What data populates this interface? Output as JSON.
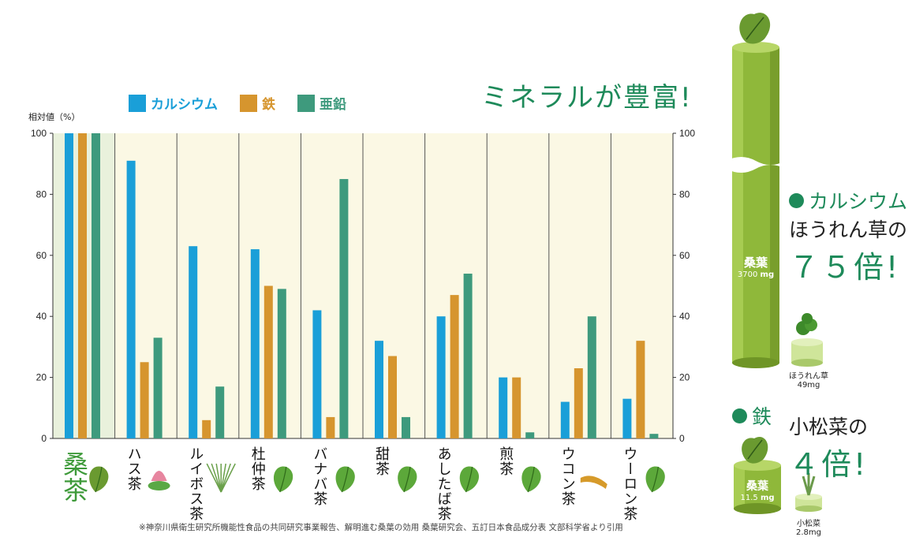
{
  "headline": "ミネラルが豊富!",
  "source_note": "※神奈川県衛生研究所機能性食品の共同研究事業報告、解明進む桑葉の効用 桑葉研究会、五訂日本食品成分表 文部科学省より引用",
  "chart_data": {
    "type": "bar",
    "ylabel": "相対値（%）",
    "ylim": [
      0,
      100
    ],
    "yticks": [
      0,
      20,
      40,
      60,
      80,
      100
    ],
    "grid": false,
    "legend_position": "top-left",
    "categories": [
      "桑茶",
      "ハス茶",
      "ルイボス茶",
      "杜仲茶",
      "バナバ茶",
      "甜茶",
      "あしたば茶",
      "煎茶",
      "ウコン茶",
      "ウーロン茶"
    ],
    "series": [
      {
        "name": "カルシウム",
        "color": "#1a9fd8",
        "values": [
          100,
          91,
          63,
          62,
          42,
          32,
          40,
          20,
          12,
          13
        ]
      },
      {
        "name": "鉄",
        "color": "#d6952e",
        "values": [
          100,
          25,
          6,
          50,
          7,
          27,
          47,
          20,
          23,
          32
        ]
      },
      {
        "name": "亜鉛",
        "color": "#3e9a7d",
        "values": [
          100,
          33,
          17,
          49,
          85,
          7,
          54,
          2,
          40,
          1.5
        ]
      }
    ]
  },
  "calcium_callout": {
    "title": "カルシウム",
    "line1": "ほうれん草の",
    "big": "７５倍!",
    "main_label": "桑葉",
    "main_value": "3700",
    "main_unit": "mg",
    "compare_label": "ほうれん草",
    "compare_value": "49mg"
  },
  "iron_callout": {
    "title": "鉄",
    "line1": "小松菜の",
    "big": "４倍!",
    "main_label": "桑葉",
    "main_value": "11.5",
    "main_unit": "mg",
    "compare_label": "小松菜",
    "compare_value": "2.8mg"
  },
  "icons": [
    "mulberry-leaf-icon",
    "lotus-icon",
    "rooibos-icon",
    "tochu-leaf-icon",
    "banaba-leaf-icon",
    "tencha-leaf-icon",
    "ashitaba-leaf-icon",
    "sencha-leaf-icon",
    "turmeric-icon",
    "oolong-leaf-icon",
    "spinach-icon",
    "komatsuna-icon"
  ]
}
